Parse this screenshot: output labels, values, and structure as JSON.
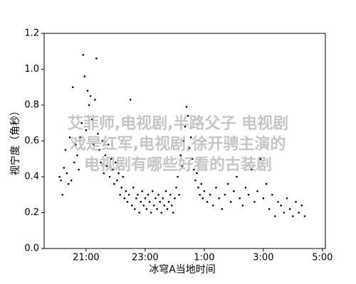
{
  "chart_data": {
    "type": "scatter",
    "xlabel": "冰穹A当地时间",
    "ylabel": "视宁度（角秒）",
    "annotations": [
      "艾菲师,电视剧,半路父子 电视剧",
      "戏是红军,电视剧,徐开骋主演的",
      "电视剧有哪些好看的古装剧"
    ],
    "xlim": [
      19.58,
      29.1
    ],
    "ylim": [
      0,
      1.2
    ],
    "xticks": [
      {
        "value": 21,
        "label": "21:00"
      },
      {
        "value": 23,
        "label": "23:00"
      },
      {
        "value": 25,
        "label": "1:00"
      },
      {
        "value": 27,
        "label": "3:00"
      },
      {
        "value": 29,
        "label": "5:00"
      }
    ],
    "yticks": [
      {
        "value": 0,
        "label": "0.0"
      },
      {
        "value": 0.2,
        "label": "0.2"
      },
      {
        "value": 0.4,
        "label": "0.4"
      },
      {
        "value": 0.6,
        "label": "0.6"
      },
      {
        "value": 0.8,
        "label": "0.8"
      },
      {
        "value": 1,
        "label": "1.0"
      },
      {
        "value": 1.2,
        "label": "1.2"
      }
    ],
    "color": "#000000",
    "x": [
      20.1,
      20.15,
      20.2,
      20.25,
      20.3,
      20.35,
      20.4,
      20.45,
      20.5,
      20.55,
      20.6,
      20.65,
      20.7,
      20.75,
      20.8,
      20.85,
      20.9,
      20.95,
      21.0,
      21.05,
      21.1,
      21.15,
      21.2,
      21.25,
      21.3,
      21.35,
      21.4,
      21.45,
      21.5,
      21.55,
      21.6,
      21.65,
      21.7,
      21.75,
      21.8,
      21.85,
      21.9,
      21.95,
      22.0,
      22.05,
      22.1,
      22.15,
      22.2,
      22.25,
      22.3,
      22.35,
      22.4,
      22.45,
      22.5,
      22.55,
      22.6,
      22.65,
      22.7,
      22.75,
      22.8,
      22.85,
      22.9,
      22.95,
      23.0,
      23.05,
      23.1,
      23.15,
      23.2,
      23.25,
      23.3,
      23.35,
      23.4,
      23.45,
      23.5,
      23.55,
      23.6,
      23.65,
      23.7,
      23.75,
      23.8,
      23.85,
      23.9,
      23.95,
      24.0,
      24.05,
      24.1,
      24.15,
      24.2,
      24.25,
      24.3,
      24.35,
      24.4,
      24.45,
      24.5,
      24.55,
      24.6,
      24.65,
      24.7,
      24.75,
      24.8,
      24.85,
      24.9,
      24.95,
      25.0,
      25.1,
      25.2,
      25.3,
      25.4,
      25.5,
      25.6,
      25.7,
      25.8,
      25.9,
      26.0,
      26.1,
      26.2,
      26.3,
      26.4,
      26.5,
      26.6,
      26.7,
      26.8,
      26.9,
      27.0,
      27.1,
      27.2,
      27.3,
      27.4,
      27.5,
      27.6,
      27.7,
      27.8,
      27.9,
      28.0,
      28.1,
      28.2,
      28.3,
      28.4
    ],
    "values": [
      0.4,
      0.38,
      0.3,
      0.45,
      0.55,
      0.42,
      0.36,
      0.62,
      0.38,
      0.9,
      0.48,
      0.58,
      0.52,
      0.44,
      0.62,
      0.7,
      1.08,
      0.96,
      0.66,
      0.88,
      0.8,
      0.85,
      0.72,
      0.58,
      0.83,
      1.06,
      0.64,
      0.55,
      0.48,
      0.6,
      0.42,
      0.52,
      0.46,
      0.58,
      0.4,
      0.5,
      0.44,
      0.36,
      0.48,
      0.38,
      0.42,
      0.3,
      0.34,
      0.4,
      0.28,
      0.32,
      0.26,
      0.3,
      0.83,
      0.24,
      0.34,
      0.22,
      0.28,
      0.3,
      0.2,
      0.26,
      0.32,
      0.24,
      0.28,
      0.22,
      0.3,
      0.26,
      0.2,
      0.32,
      0.24,
      0.28,
      0.22,
      0.3,
      0.26,
      0.2,
      0.28,
      0.24,
      0.32,
      0.22,
      0.26,
      0.3,
      0.24,
      0.2,
      0.28,
      0.34,
      0.4,
      0.3,
      0.52,
      0.46,
      0.6,
      0.68,
      0.79,
      0.74,
      0.56,
      0.62,
      0.5,
      0.44,
      0.38,
      0.42,
      0.34,
      0.3,
      0.36,
      0.28,
      0.32,
      0.26,
      0.3,
      0.24,
      0.34,
      0.28,
      0.22,
      0.3,
      0.36,
      0.26,
      0.32,
      0.4,
      0.28,
      0.24,
      0.34,
      0.3,
      0.44,
      0.26,
      0.32,
      0.5,
      0.28,
      0.36,
      0.22,
      0.3,
      0.18,
      0.26,
      0.24,
      0.2,
      0.28,
      0.22,
      0.18,
      0.26,
      0.2,
      0.24,
      0.18
    ]
  }
}
